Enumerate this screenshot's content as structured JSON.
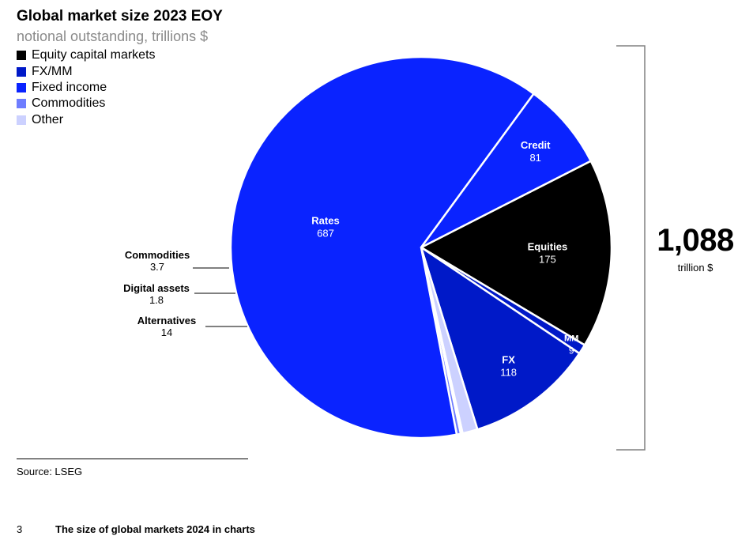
{
  "title": "Global market size 2023 EOY",
  "subtitle": "notional outstanding, trillions $",
  "legend": [
    {
      "label": "Equity capital markets",
      "color": "#000000"
    },
    {
      "label": "FX/MM",
      "color": "#0019c8"
    },
    {
      "label": "Fixed income",
      "color": "#0a23ff"
    },
    {
      "label": "Commodities",
      "color": "#6e7dff"
    },
    {
      "label": "Other",
      "color": "#ccd1ff"
    }
  ],
  "total": {
    "value": "1,088",
    "unit": "trillion $"
  },
  "source": "Source: LSEG",
  "footer": {
    "page": "3",
    "title": "The size of global markets 2024 in charts"
  },
  "chart_data": {
    "type": "pie",
    "title": "Global market size 2023 EOY",
    "subtitle": "notional outstanding, trillions $",
    "total": 1088,
    "slices": [
      {
        "label": "Equities",
        "value": 175,
        "value_label": "175",
        "group": "Equity capital markets",
        "color": "#000000"
      },
      {
        "label": "MM",
        "value": 9,
        "value_label": "9",
        "group": "FX/MM",
        "color": "#0019c8"
      },
      {
        "label": "FX",
        "value": 118,
        "value_label": "118",
        "group": "FX/MM",
        "color": "#0019c8"
      },
      {
        "label": "Alternatives",
        "value": 14,
        "value_label": "14",
        "group": "Other",
        "color": "#ccd1ff"
      },
      {
        "label": "Digital assets",
        "value": 1.8,
        "value_label": "1.8",
        "group": "Other",
        "color": "#ccd1ff"
      },
      {
        "label": "Commodities",
        "value": 3.7,
        "value_label": "3.7",
        "group": "Commodities",
        "color": "#6e7dff"
      },
      {
        "label": "Rates",
        "value": 687,
        "value_label": "687",
        "group": "Fixed income",
        "color": "#0a23ff"
      },
      {
        "label": "Credit",
        "value": 81,
        "value_label": "81",
        "group": "Fixed income",
        "color": "#0a23ff"
      }
    ]
  }
}
